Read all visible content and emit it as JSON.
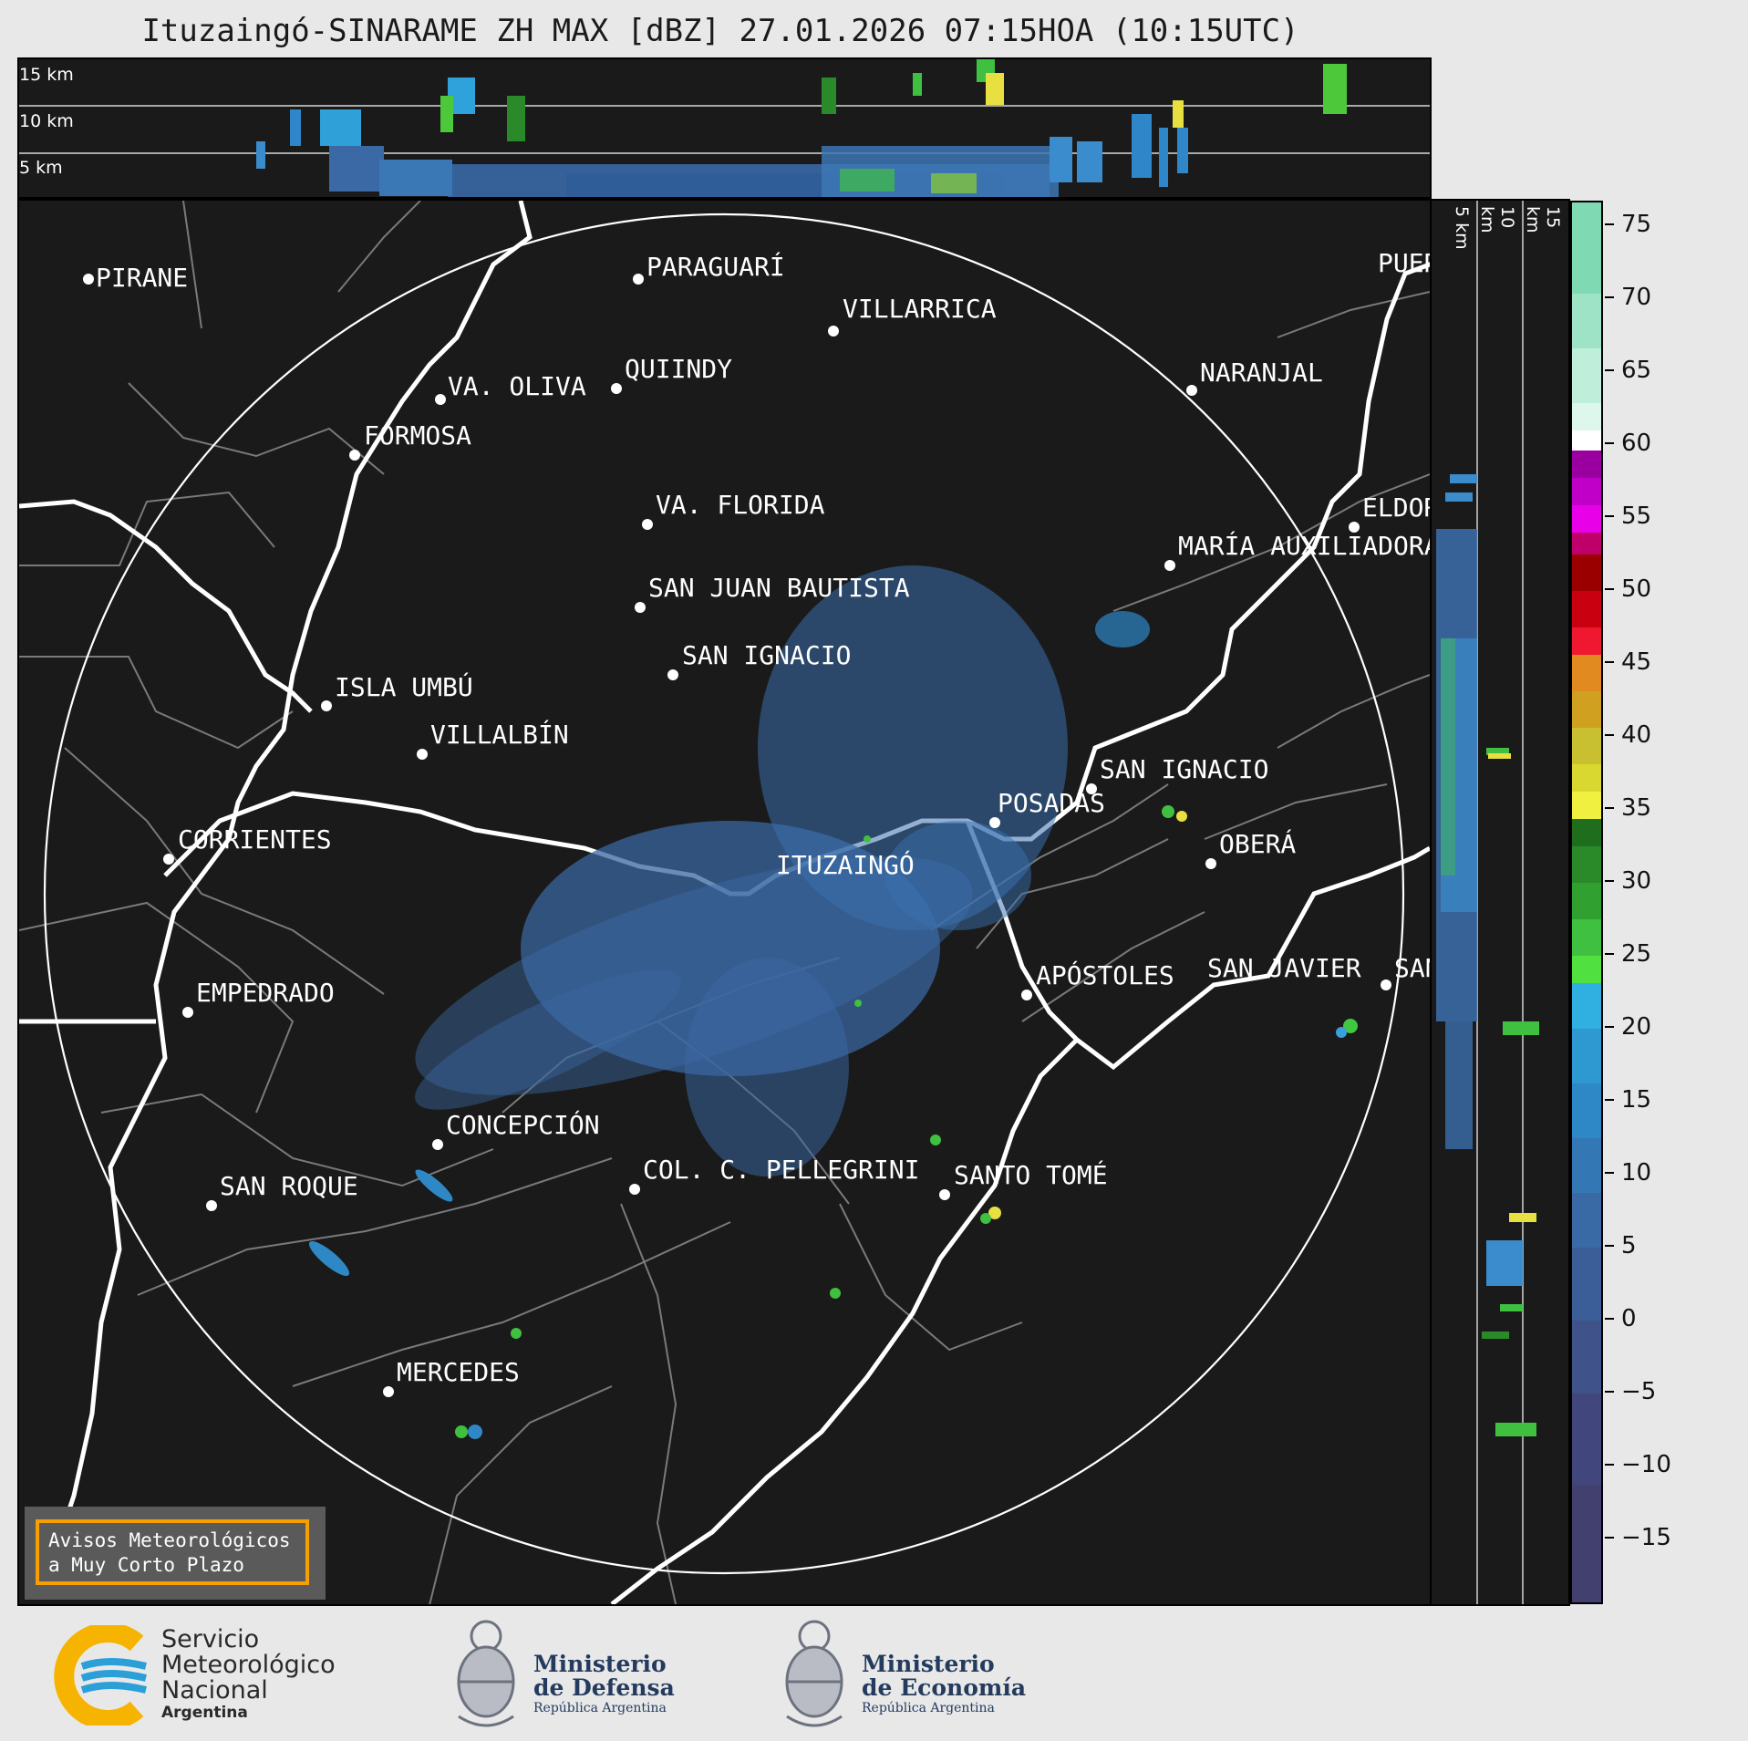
{
  "title": "Ituzaingó-SINARAME ZH MAX [dBZ] 27.01.2026 07:15HOA (10:15UTC)",
  "top_panel": {
    "km_labels": [
      "15 km",
      "10 km",
      "5 km"
    ]
  },
  "side_panel": {
    "km_labels": [
      "5 km",
      "10 km",
      "15 km"
    ]
  },
  "colorbar": {
    "ticks": [
      "75",
      "70",
      "65",
      "60",
      "55",
      "50",
      "45",
      "40",
      "35",
      "30",
      "25",
      "20",
      "15",
      "10",
      "5",
      "0",
      "−5",
      "−10",
      "−15"
    ]
  },
  "cities": [
    {
      "name": "PIRANE"
    },
    {
      "name": "PARAGUARÍ"
    },
    {
      "name": "VILLARRICA"
    },
    {
      "name": "PUERTO"
    },
    {
      "name": "VA. OLIVA"
    },
    {
      "name": "QUIINDY"
    },
    {
      "name": "NARANJAL"
    },
    {
      "name": "FORMOSA"
    },
    {
      "name": "VA. FLORIDA"
    },
    {
      "name": "ELDORADO"
    },
    {
      "name": "MARÍA AUXILIADORA"
    },
    {
      "name": "SAN JUAN BAUTISTA"
    },
    {
      "name": "SAN IGNACIO"
    },
    {
      "name": "ISLA UMBÚ"
    },
    {
      "name": "VILLALBÍN"
    },
    {
      "name": "SAN IGNACIO"
    },
    {
      "name": "POSADAS"
    },
    {
      "name": "CORRIENTES"
    },
    {
      "name": "ITUZAINGÓ"
    },
    {
      "name": "OBERÁ"
    },
    {
      "name": "APÓSTOLES"
    },
    {
      "name": "SAN JAVIER"
    },
    {
      "name": "SAN"
    },
    {
      "name": "EMPEDRADO"
    },
    {
      "name": "CONCEPCIÓN"
    },
    {
      "name": "COL. C. PELLEGRINI"
    },
    {
      "name": "SANTO TOMÉ"
    },
    {
      "name": "SAN ROQUE"
    },
    {
      "name": "MERCEDES"
    }
  ],
  "avisos": {
    "line1": "Avisos Meteorológicos",
    "line2": "a Muy Corto Plazo"
  },
  "logos": {
    "smn": {
      "line1": "Servicio",
      "line2": "Meteorológico",
      "line3": "Nacional",
      "line4": "Argentina"
    },
    "defensa": {
      "line1": "Ministerio",
      "line2": "de Defensa",
      "line3": "República Argentina"
    },
    "economia": {
      "line1": "Ministerio",
      "line2": "de Economía",
      "line3": "República Argentina"
    }
  },
  "colors": {
    "panel_bg": "#1a1a1a",
    "accent_orange": "#f5a000",
    "smn_blue": "#2a9fd8",
    "smn_yellow": "#f6b300"
  }
}
